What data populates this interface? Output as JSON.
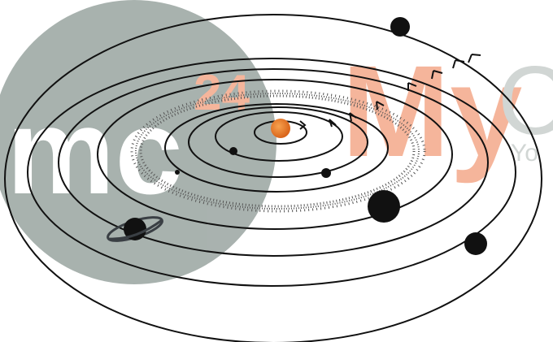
{
  "watermark": {
    "logo_text": "mc",
    "number_text": "24",
    "brand_text": "My",
    "tail_text": "C",
    "sub_text": "Yo",
    "colors": {
      "circle": "#9aa5a1",
      "orange": "#f4a98a",
      "grey_text": "#c9cfcd"
    }
  },
  "diagram": {
    "sun_color": "#e8772a",
    "orbit_color": "#111111",
    "planet_color": "#111111",
    "belt_color": "#666666"
  }
}
